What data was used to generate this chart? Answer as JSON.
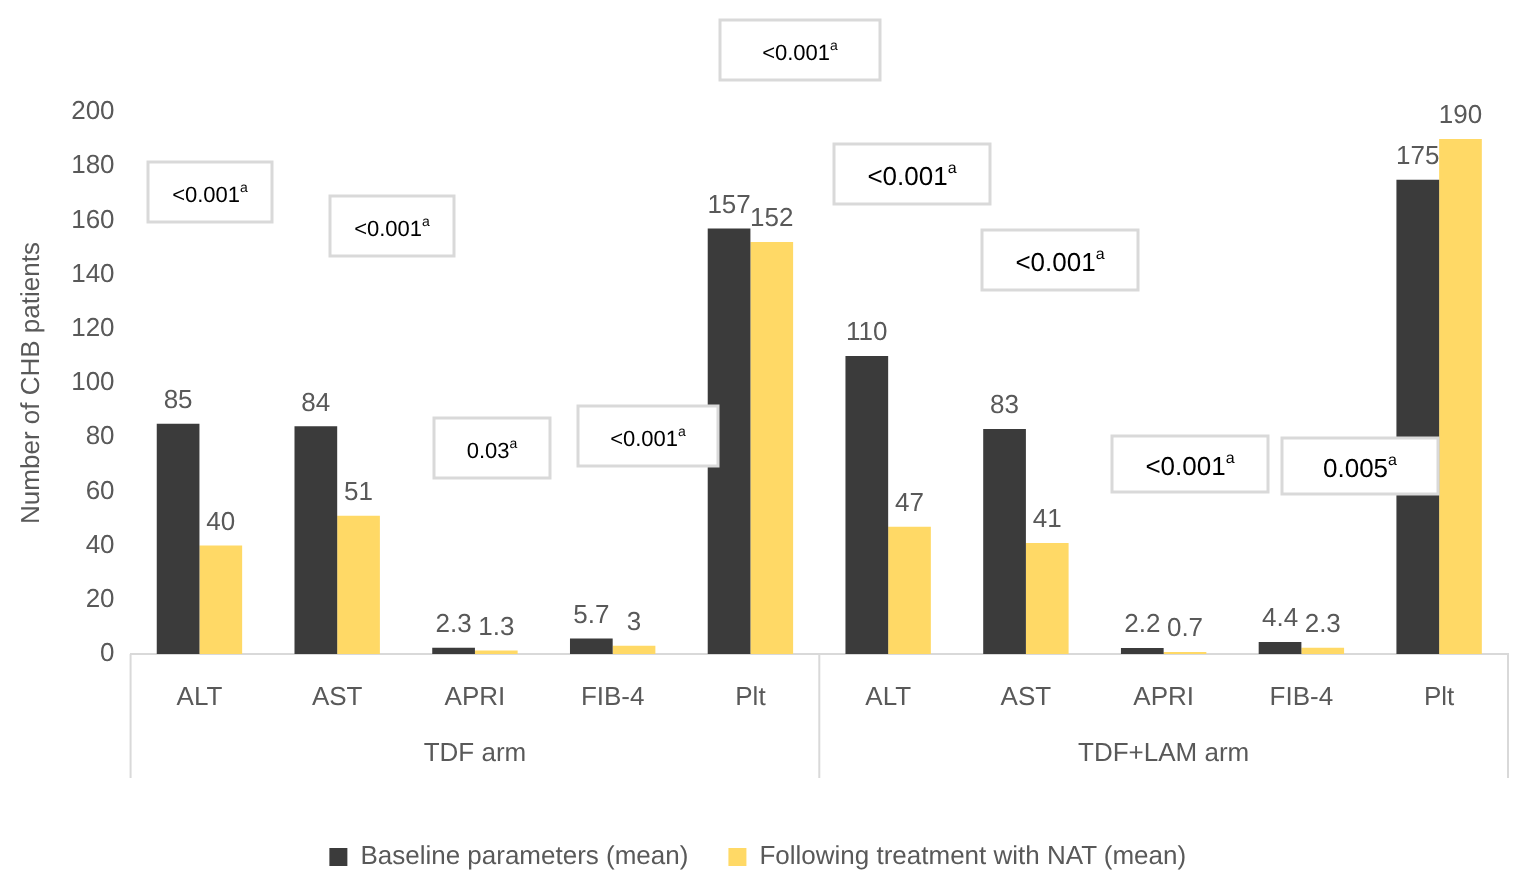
{
  "chart_data": {
    "type": "bar",
    "ylabel": "Number of CHB patients",
    "categories": [
      "ALT",
      "AST",
      "APRI",
      "FIB-4",
      "Plt",
      "ALT",
      "AST",
      "APRI",
      "FIB-4",
      "Plt"
    ],
    "series": [
      {
        "name": "Baseline parameters (mean)",
        "color": "#3b3b3b",
        "values": [
          85,
          84,
          2.3,
          5.7,
          157,
          110,
          83,
          2.2,
          4.4,
          175
        ]
      },
      {
        "name": "Following treatment with NAT (mean)",
        "color": "#ffd966",
        "values": [
          40,
          51,
          1.3,
          3,
          152,
          47,
          41,
          0.7,
          2.3,
          190
        ]
      }
    ],
    "ylim": [
      0,
      200
    ],
    "yticks": [
      0,
      20,
      40,
      60,
      80,
      100,
      120,
      140,
      160,
      180,
      200
    ],
    "grid": false,
    "legend": "bottom",
    "data_labels": true,
    "annotations": [
      "<0.001$^{a}$",
      "<0.001$^{a}$",
      "0.03$^{a}$",
      "<0.001$^{a}$",
      "<0.001$^{a}$",
      "<0.001$^{a}$",
      "<0.001$^{a}$",
      "<0.001$^{a}$",
      "0.005$^{a}$",
      "TDF arm",
      "TDF+LAM arm"
    ]
  }
}
